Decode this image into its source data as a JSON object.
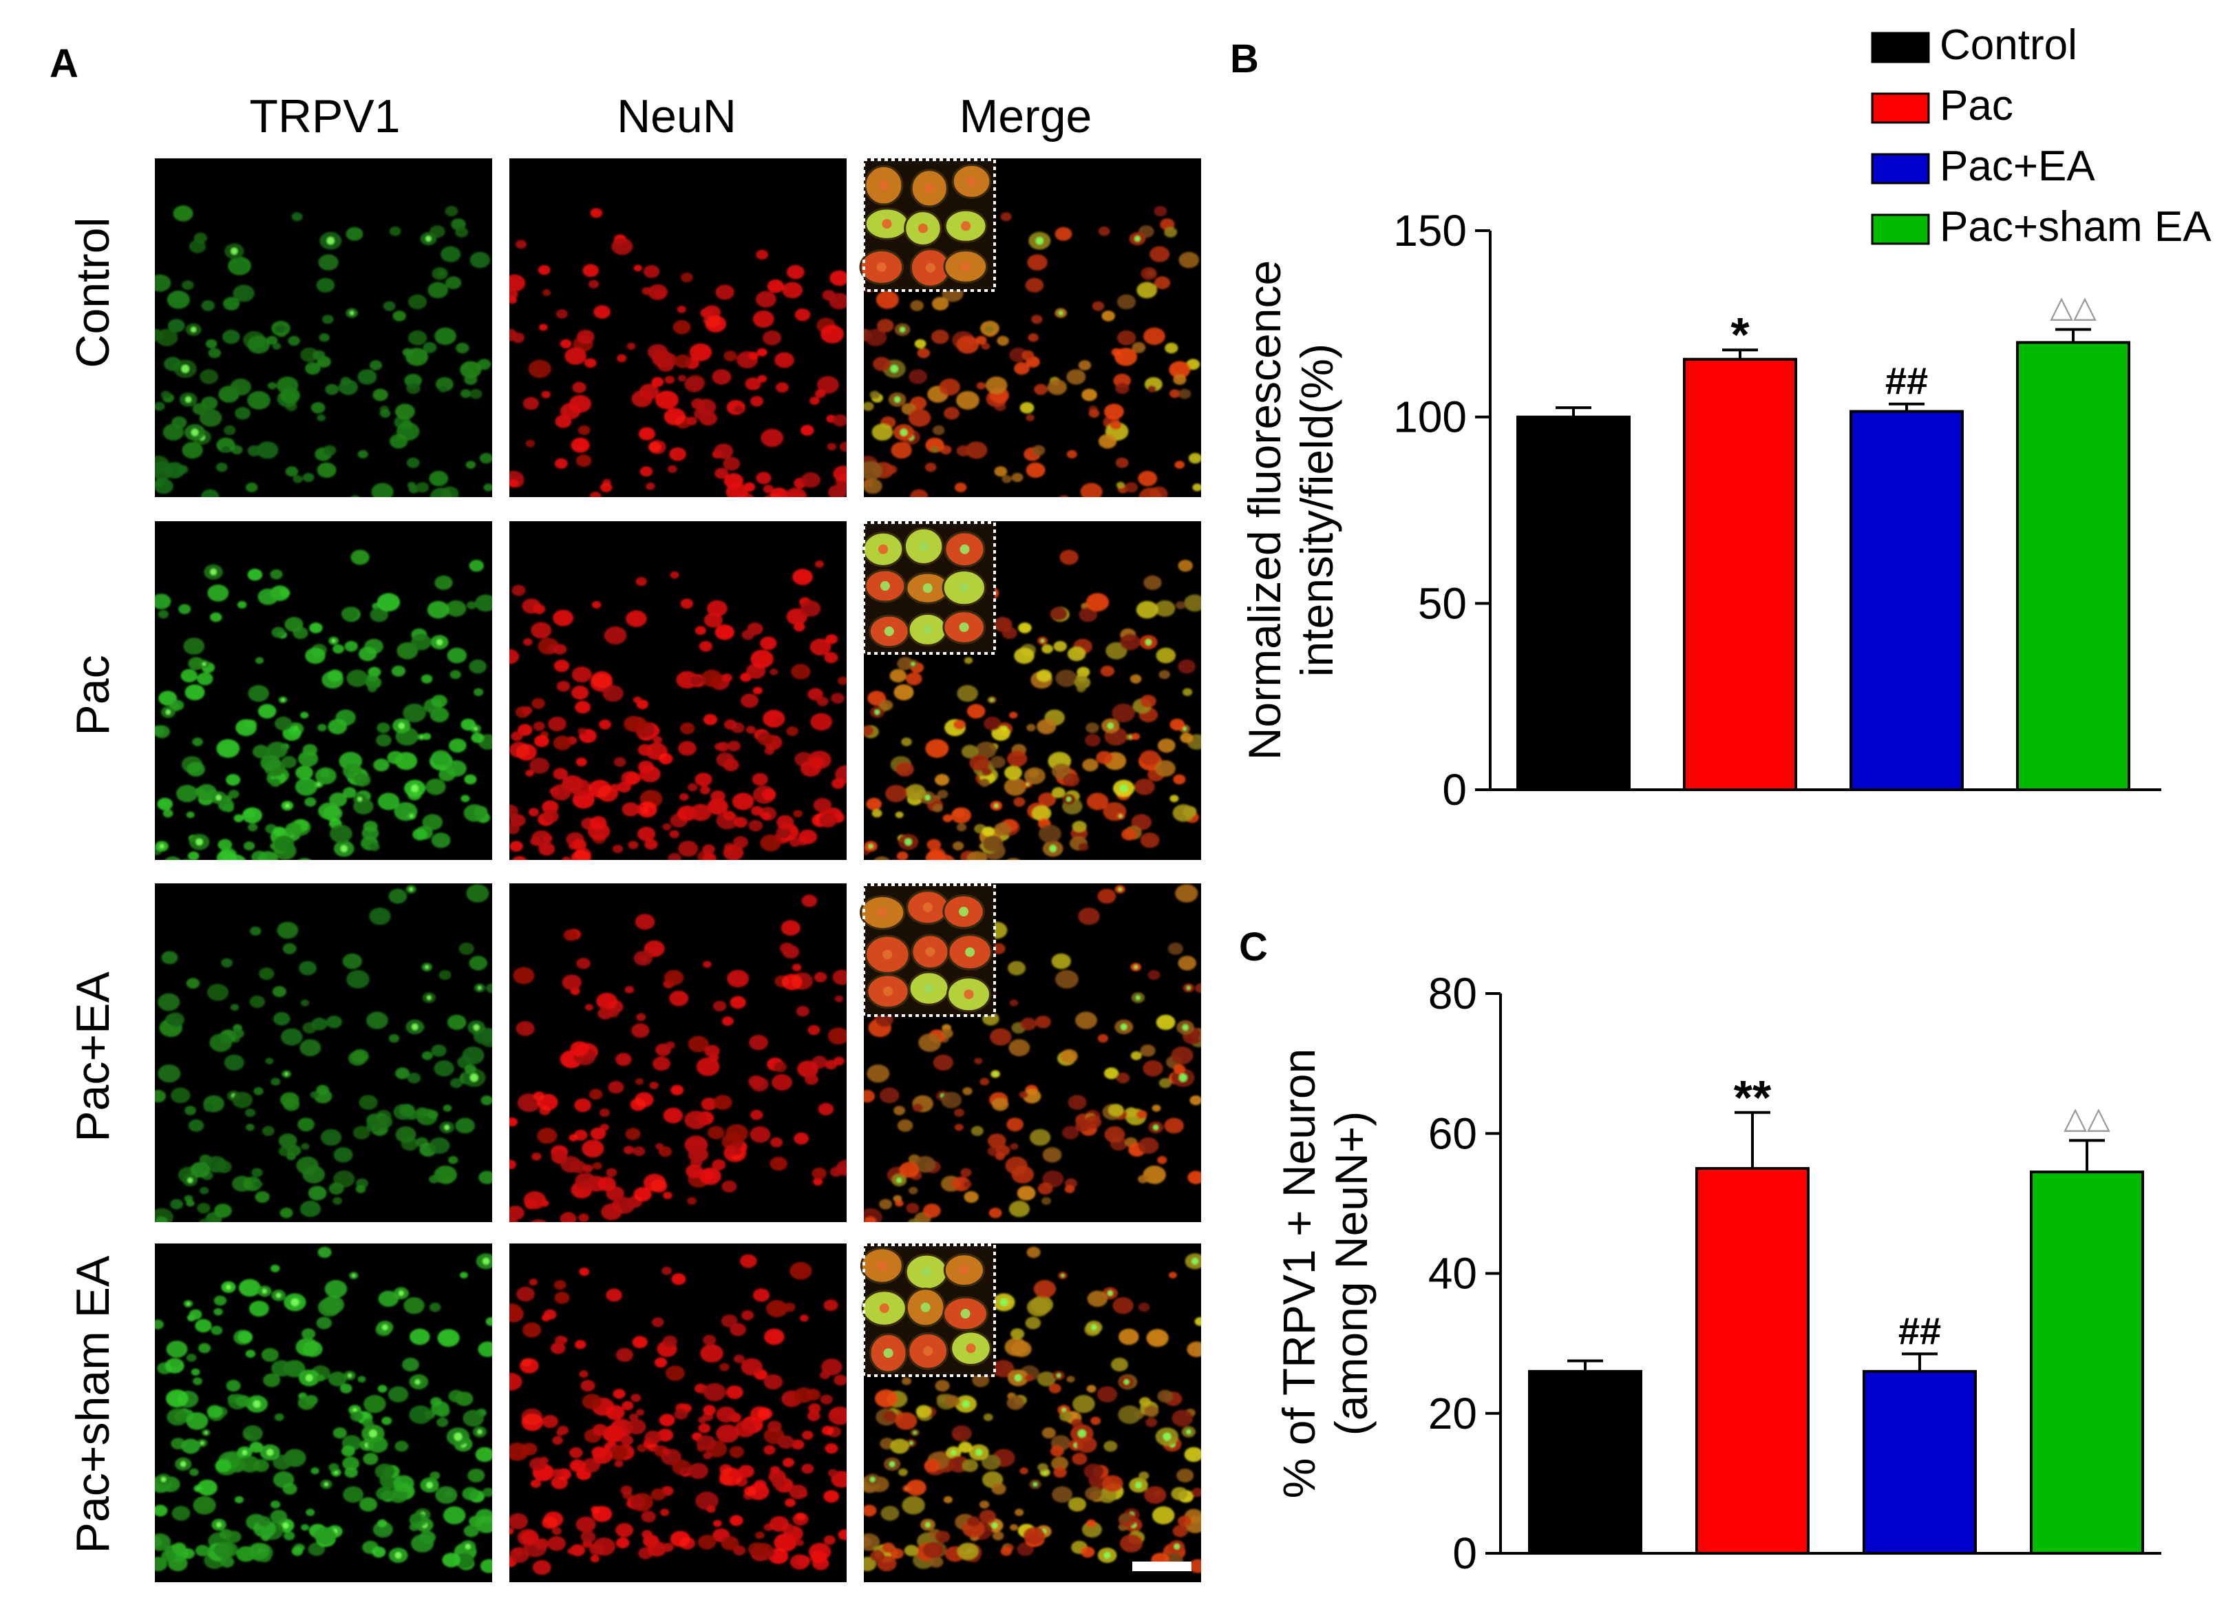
{
  "panel_a": {
    "label": "A",
    "columns": [
      "TRPV1",
      "NeuN",
      "Merge"
    ],
    "rows": [
      "Control",
      "Pac",
      "Pac+EA",
      "Pac+sham EA"
    ]
  },
  "colors": {
    "Control": "#000000",
    "Pac": "#ff0000",
    "Pac+EA": "#0000cc",
    "Pac+sham EA": "#00bb00",
    "trpv1_channel": "#39c43a",
    "neun_channel": "#e01a10"
  },
  "legend": [
    "Control",
    "Pac",
    "Pac+EA",
    "Pac+sham EA"
  ],
  "chart_data": [
    {
      "panel": "B",
      "type": "bar",
      "categories": [
        "Control",
        "Pac",
        "Pac+EA",
        "Pac+sham EA"
      ],
      "values": [
        100,
        115.5,
        101.5,
        120
      ],
      "errors": [
        2.5,
        2.5,
        2.0,
        3.5
      ],
      "significance": [
        "",
        "*",
        "##",
        "△△"
      ],
      "ylabel": [
        "Normalized  fluorescence",
        "intensity/field(%)"
      ],
      "ylim": [
        0,
        150
      ],
      "yticks": [
        0,
        50,
        100,
        150
      ]
    },
    {
      "panel": "C",
      "type": "bar",
      "categories": [
        "Control",
        "Pac",
        "Pac+EA",
        "Pac+sham EA"
      ],
      "values": [
        26,
        55,
        26,
        54.5
      ],
      "errors": [
        1.5,
        8,
        2.5,
        4.5
      ],
      "significance": [
        "",
        "**",
        "##",
        "△△"
      ],
      "ylabel": [
        "% of TRPV1 + Neuron",
        "(among NeuN+)"
      ],
      "ylim": [
        0,
        80
      ],
      "yticks": [
        0,
        20,
        40,
        60,
        80
      ]
    }
  ]
}
